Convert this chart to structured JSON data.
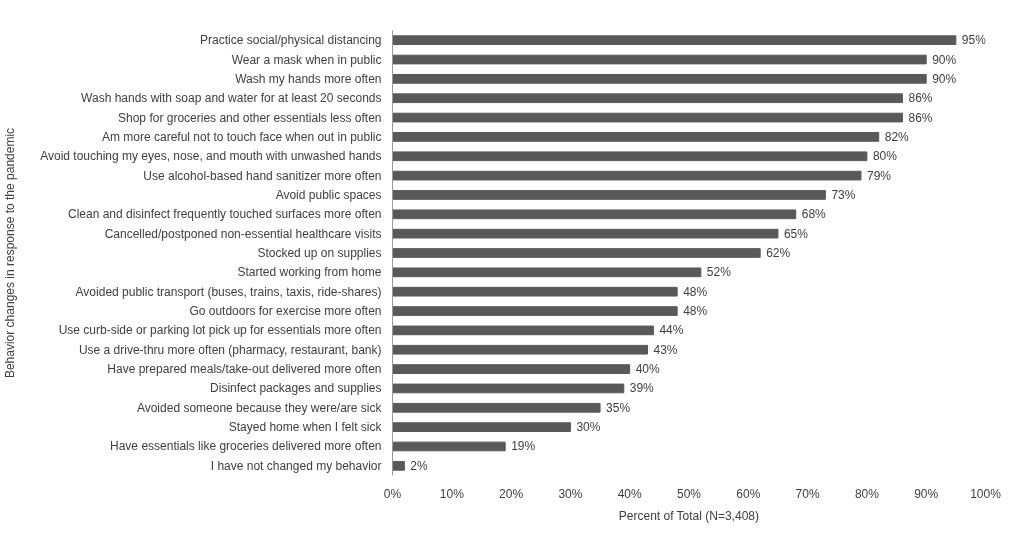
{
  "chart_data": {
    "type": "bar",
    "orientation": "horizontal",
    "categories": [
      "Practice social/physical distancing",
      "Wear a mask when in public",
      "Wash my hands more often",
      "Wash hands with soap and water for at least 20 seconds",
      "Shop for groceries and other essentials less often",
      "Am more careful not to touch face when out in public",
      "Avoid touching my eyes, nose, and mouth with unwashed hands",
      "Use alcohol-based hand sanitizer more often",
      "Avoid public spaces",
      "Clean and disinfect frequently touched surfaces more often",
      "Cancelled/postponed non-essential healthcare visits",
      "Stocked up on supplies",
      "Started working from home",
      "Avoided public transport (buses, trains, taxis, ride-shares)",
      "Go outdoors for exercise more often",
      "Use curb-side or parking lot pick up for essentials more often",
      "Use a drive-thru more often (pharmacy, restaurant, bank)",
      "Have prepared meals/take-out delivered more often",
      "Disinfect packages and supplies",
      "Avoided someone because they were/are sick",
      "Stayed home when I felt sick",
      "Have essentials like groceries delivered more often",
      "I have not changed my behavior"
    ],
    "values": [
      95,
      90,
      90,
      86,
      86,
      82,
      80,
      79,
      73,
      68,
      65,
      62,
      52,
      48,
      48,
      44,
      43,
      40,
      39,
      35,
      30,
      19,
      2
    ],
    "value_labels": [
      "95%",
      "90%",
      "90%",
      "86%",
      "86%",
      "82%",
      "80%",
      "79%",
      "73%",
      "68%",
      "65%",
      "62%",
      "52%",
      "48%",
      "48%",
      "44%",
      "43%",
      "40%",
      "39%",
      "35%",
      "30%",
      "19%",
      "2%"
    ],
    "color": "#595959",
    "xlim": [
      0,
      100
    ],
    "xticks": [
      {
        "value": 0,
        "label": "0%"
      },
      {
        "value": 10,
        "label": "10%"
      },
      {
        "value": 20,
        "label": "20%"
      },
      {
        "value": 30,
        "label": "30%"
      },
      {
        "value": 40,
        "label": "40%"
      },
      {
        "value": 50,
        "label": "50%"
      },
      {
        "value": 60,
        "label": "60%"
      },
      {
        "value": 70,
        "label": "70%"
      },
      {
        "value": 80,
        "label": "80%"
      },
      {
        "value": 90,
        "label": "90%"
      },
      {
        "value": 100,
        "label": "100%"
      }
    ],
    "xlabel": "Percent of Total (N=3,408)",
    "ylabel": "Behavior changes in response to the pandemic",
    "grid": false
  }
}
